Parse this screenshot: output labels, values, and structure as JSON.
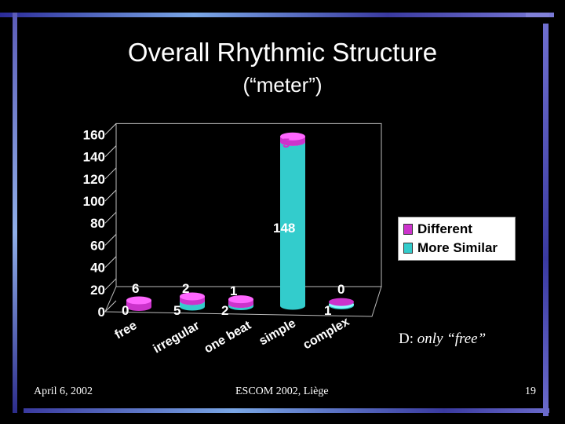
{
  "slide": {
    "title": "Overall Rhythmic Structure",
    "subtitle": "(“meter”)",
    "note_prefix": "D:",
    "note_text": "only “free”",
    "footer_left": "April 6, 2002",
    "footer_center": "ESCOM 2002, Liège",
    "footer_right": "19"
  },
  "colors": {
    "different": "#cc33cc",
    "more_similar": "#33cccc",
    "background": "#000000"
  },
  "chart_data": {
    "type": "bar",
    "categories": [
      "free",
      "irregular",
      "one beat",
      "simple",
      "complex"
    ],
    "series": [
      {
        "name": "Different",
        "values": [
          6,
          2,
          1,
          5,
          0
        ],
        "labels": [
          "6",
          "2",
          "1",
          "5",
          "0"
        ]
      },
      {
        "name": "More Similar",
        "values": [
          0,
          5,
          2,
          148,
          1
        ],
        "labels": [
          "0",
          "5",
          "2",
          "148",
          "1"
        ]
      }
    ],
    "stacked": true,
    "yticks": [
      "0",
      "20",
      "40",
      "60",
      "80",
      "100",
      "120",
      "140",
      "160"
    ],
    "ylim": [
      0,
      160
    ],
    "legend": "right",
    "grid": false
  }
}
